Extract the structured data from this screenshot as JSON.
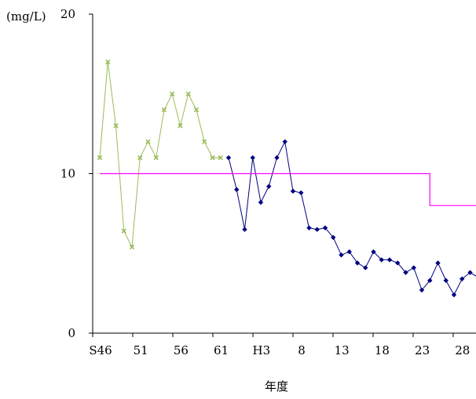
{
  "chart_data": {
    "type": "line",
    "ylabel": "(mg/L)",
    "xlabel": "年度",
    "ylim": [
      0,
      20
    ],
    "yticks": [
      0,
      10,
      20
    ],
    "x_tick_labels": [
      "S46",
      "51",
      "56",
      "61",
      "H3",
      "8",
      "13",
      "18",
      "23",
      "28"
    ],
    "x_range_fiscal_years": [
      1971,
      2018
    ],
    "grid": false,
    "legend": "none",
    "series": [
      {
        "color": "#9bbb59",
        "marker": "x",
        "x": [
          1971,
          1972,
          1973,
          1974,
          1975,
          1976,
          1977,
          1978,
          1979,
          1980,
          1981,
          1982,
          1983,
          1984,
          1985,
          1986
        ],
        "values": [
          11.0,
          17.0,
          13.0,
          6.4,
          5.4,
          11.0,
          12.0,
          11.0,
          14.0,
          15.0,
          13.0,
          15.0,
          14.0,
          12.0,
          11.0,
          11.0
        ]
      },
      {
        "color": "#000080",
        "marker": "diamond",
        "x": [
          1987,
          1988,
          1989,
          1990,
          1991,
          1992,
          1993,
          1994,
          1995,
          1996,
          1997,
          1998,
          1999,
          2000,
          2001,
          2002,
          2003,
          2004,
          2005,
          2006,
          2007,
          2008,
          2009,
          2010,
          2011,
          2012,
          2013,
          2014,
          2015,
          2016,
          2017,
          2018
        ],
        "values": [
          11.0,
          9.0,
          6.5,
          11.0,
          8.2,
          9.2,
          11.0,
          12.0,
          8.9,
          8.8,
          6.6,
          6.5,
          6.6,
          6.0,
          4.9,
          5.1,
          4.4,
          4.1,
          5.1,
          4.6,
          4.6,
          4.4,
          3.8,
          4.1,
          2.7,
          3.3,
          4.4,
          3.3,
          2.4,
          3.4,
          3.8,
          3.5
        ]
      },
      {
        "color": "#ff00ff",
        "marker": "none",
        "step": true,
        "x": [
          1971,
          2009,
          2009,
          2009,
          2009,
          2012,
          2012,
          2019
        ],
        "values": [
          10.0,
          10.0,
          10.0,
          10.0,
          10.0,
          10.0,
          8.0,
          8.0
        ]
      }
    ]
  }
}
